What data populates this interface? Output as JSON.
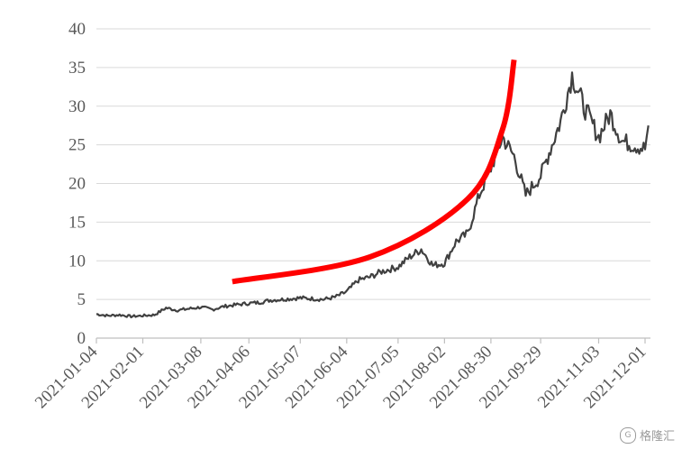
{
  "chart_data": {
    "type": "line",
    "title": "",
    "xlabel": "",
    "ylabel": "",
    "ylim": [
      0,
      40
    ],
    "yticks": [
      0,
      5,
      10,
      15,
      20,
      25,
      30,
      35,
      40
    ],
    "xticks": [
      "2021-01-04",
      "2021-02-01",
      "2021-03-08",
      "2021-04-06",
      "2021-05-07",
      "2021-06-04",
      "2021-07-05",
      "2021-08-02",
      "2021-08-30",
      "2021-09-29",
      "2021-11-03",
      "2021-12-01"
    ],
    "grid": true,
    "legend": "none",
    "series": [
      {
        "color": "#404040",
        "x": [
          "2021-01-04",
          "2021-01-11",
          "2021-01-18",
          "2021-01-25",
          "2021-02-01",
          "2021-02-08",
          "2021-02-15",
          "2021-02-22",
          "2021-03-01",
          "2021-03-08",
          "2021-03-15",
          "2021-03-22",
          "2021-03-29",
          "2021-04-06",
          "2021-04-12",
          "2021-04-19",
          "2021-04-26",
          "2021-05-07",
          "2021-05-14",
          "2021-05-21",
          "2021-05-28",
          "2021-06-04",
          "2021-06-11",
          "2021-06-18",
          "2021-06-25",
          "2021-07-05",
          "2021-07-12",
          "2021-07-19",
          "2021-07-26",
          "2021-08-02",
          "2021-08-09",
          "2021-08-16",
          "2021-08-23",
          "2021-08-30",
          "2021-09-06",
          "2021-09-13",
          "2021-09-20",
          "2021-09-29",
          "2021-10-11",
          "2021-10-18",
          "2021-10-25",
          "2021-11-03",
          "2021-11-10",
          "2021-11-17",
          "2021-11-24",
          "2021-12-01",
          "2021-12-03"
        ],
        "y": [
          3.1,
          2.9,
          3.0,
          2.8,
          2.9,
          3.0,
          3.9,
          3.6,
          3.8,
          4.0,
          3.7,
          4.1,
          4.3,
          4.5,
          4.6,
          4.9,
          5.0,
          5.2,
          5.1,
          5.0,
          5.3,
          6.0,
          7.5,
          7.9,
          8.6,
          9.2,
          10.5,
          11.5,
          9.4,
          9.7,
          12.5,
          13.5,
          18.5,
          22.0,
          26.0,
          23.5,
          18.5,
          21.0,
          28.0,
          34.0,
          30.0,
          26.0,
          29.0,
          25.5,
          25.0,
          24.5,
          27.5
        ]
      }
    ],
    "annotation": {
      "type": "curve",
      "color": "#ff0000",
      "points": [
        [
          "2021-03-27",
          7.3
        ],
        [
          "2021-06-18",
          10.5
        ],
        [
          "2021-08-16",
          18.0
        ],
        [
          "2021-09-06",
          27.0
        ],
        [
          "2021-09-13",
          36.0
        ]
      ]
    }
  },
  "watermark": {
    "badge": "G",
    "text": "格隆汇"
  }
}
